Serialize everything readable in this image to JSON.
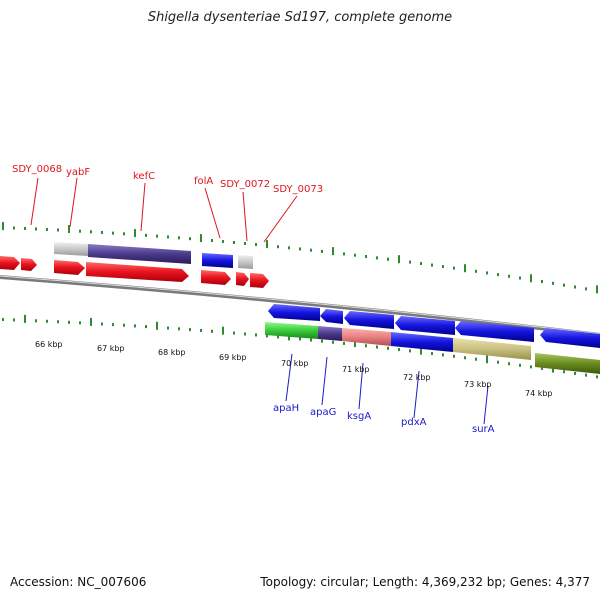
{
  "title": "Shigella dysenteriae Sd197, complete genome",
  "footer": {
    "accession": "Accession: NC_007606",
    "topology": "Topology: circular; Length: 4,369,232 bp; Genes: 4,377"
  },
  "scale": {
    "unit": "kbp",
    "labels": [
      "66 kbp",
      "67 kbp",
      "68 kbp",
      "69 kbp",
      "70 kbp",
      "71 kbp",
      "72 kbp",
      "73 kbp",
      "74 kbp"
    ]
  },
  "genes_forward": [
    {
      "name": "SDY_0068"
    },
    {
      "name": "yabF"
    },
    {
      "name": "kefC"
    },
    {
      "name": "folA"
    },
    {
      "name": "SDY_0072"
    },
    {
      "name": "SDY_0073"
    }
  ],
  "genes_reverse": [
    {
      "name": "apaH"
    },
    {
      "name": "apaG"
    },
    {
      "name": "ksgA"
    },
    {
      "name": "pdxA"
    },
    {
      "name": "surA"
    }
  ],
  "colors": {
    "forward_gene": "#e8121c",
    "reverse_gene": "#1414e0",
    "backbone": "#8a8a8a",
    "ticks": "#2d8a2d",
    "label_red": "#e0141e",
    "label_blue": "#1a1ac8"
  }
}
